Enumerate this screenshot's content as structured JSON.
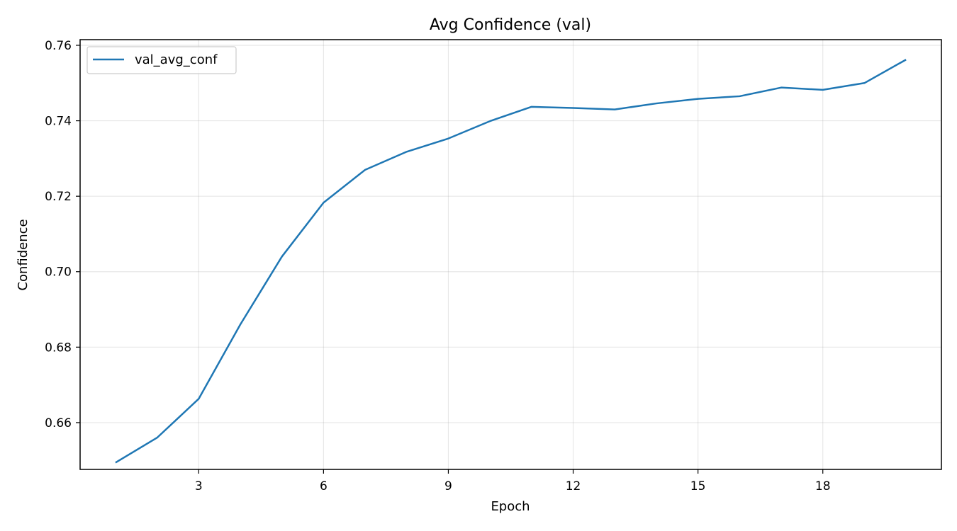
{
  "chart_data": {
    "type": "line",
    "title": "Avg Confidence (val)",
    "xlabel": "Epoch",
    "ylabel": "Confidence",
    "xlim": [
      0.15,
      20.85
    ],
    "ylim": [
      0.6476,
      0.7615
    ],
    "xticks": [
      3,
      6,
      9,
      12,
      15,
      18
    ],
    "yticks": [
      0.66,
      0.68,
      0.7,
      0.72,
      0.74,
      0.76
    ],
    "ytick_labels": [
      "0.66",
      "0.68",
      "0.70",
      "0.72",
      "0.74",
      "0.76"
    ],
    "grid": true,
    "legend_position": "top-left",
    "series": [
      {
        "name": "val_avg_conf",
        "color": "#1f77b4",
        "x": [
          1,
          2,
          3,
          4,
          5,
          6,
          7,
          8,
          9,
          10,
          11,
          12,
          13,
          14,
          15,
          16,
          17,
          18,
          19,
          20
        ],
        "values": [
          0.6494,
          0.656,
          0.6663,
          0.686,
          0.704,
          0.7183,
          0.727,
          0.7318,
          0.7353,
          0.7399,
          0.7437,
          0.7434,
          0.743,
          0.7446,
          0.7458,
          0.7465,
          0.7488,
          0.7482,
          0.75,
          0.7562
        ]
      }
    ]
  }
}
